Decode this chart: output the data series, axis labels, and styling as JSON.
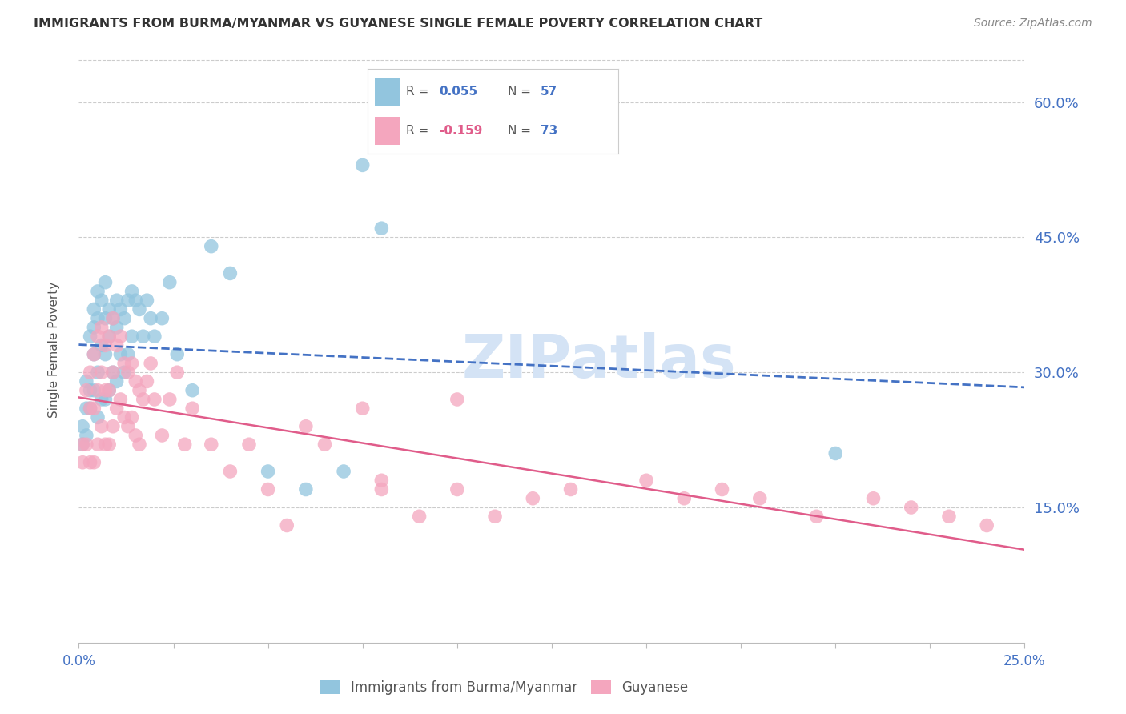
{
  "title": "IMMIGRANTS FROM BURMA/MYANMAR VS GUYANESE SINGLE FEMALE POVERTY CORRELATION CHART",
  "source": "Source: ZipAtlas.com",
  "ylabel": "Single Female Poverty",
  "xmin": 0.0,
  "xmax": 0.25,
  "ymin": 0.0,
  "ymax": 0.65,
  "ytick_vals": [
    0.15,
    0.3,
    0.45,
    0.6
  ],
  "ytick_labels": [
    "15.0%",
    "30.0%",
    "45.0%",
    "60.0%"
  ],
  "blue_color": "#92c5de",
  "pink_color": "#f4a6be",
  "trendline_blue_color": "#4472c4",
  "trendline_pink_color": "#e05c8a",
  "watermark_color": "#d4e3f5",
  "blue_scatter_x": [
    0.001,
    0.001,
    0.002,
    0.002,
    0.002,
    0.003,
    0.003,
    0.003,
    0.004,
    0.004,
    0.004,
    0.004,
    0.005,
    0.005,
    0.005,
    0.005,
    0.006,
    0.006,
    0.006,
    0.007,
    0.007,
    0.007,
    0.007,
    0.008,
    0.008,
    0.008,
    0.009,
    0.009,
    0.01,
    0.01,
    0.01,
    0.011,
    0.011,
    0.012,
    0.012,
    0.013,
    0.013,
    0.014,
    0.014,
    0.015,
    0.016,
    0.017,
    0.018,
    0.019,
    0.02,
    0.022,
    0.024,
    0.026,
    0.03,
    0.035,
    0.04,
    0.05,
    0.06,
    0.07,
    0.075,
    0.08,
    0.2
  ],
  "blue_scatter_y": [
    0.24,
    0.22,
    0.29,
    0.26,
    0.23,
    0.34,
    0.28,
    0.26,
    0.37,
    0.35,
    0.32,
    0.28,
    0.39,
    0.36,
    0.3,
    0.25,
    0.38,
    0.33,
    0.27,
    0.4,
    0.36,
    0.32,
    0.27,
    0.37,
    0.34,
    0.28,
    0.36,
    0.3,
    0.38,
    0.35,
    0.29,
    0.37,
    0.32,
    0.36,
    0.3,
    0.38,
    0.32,
    0.39,
    0.34,
    0.38,
    0.37,
    0.34,
    0.38,
    0.36,
    0.34,
    0.36,
    0.4,
    0.32,
    0.28,
    0.44,
    0.41,
    0.19,
    0.17,
    0.19,
    0.53,
    0.46,
    0.21
  ],
  "pink_scatter_x": [
    0.001,
    0.001,
    0.002,
    0.002,
    0.003,
    0.003,
    0.003,
    0.004,
    0.004,
    0.004,
    0.005,
    0.005,
    0.005,
    0.006,
    0.006,
    0.006,
    0.007,
    0.007,
    0.007,
    0.008,
    0.008,
    0.008,
    0.009,
    0.009,
    0.009,
    0.01,
    0.01,
    0.011,
    0.011,
    0.012,
    0.012,
    0.013,
    0.013,
    0.014,
    0.014,
    0.015,
    0.015,
    0.016,
    0.016,
    0.017,
    0.018,
    0.019,
    0.02,
    0.022,
    0.024,
    0.026,
    0.028,
    0.03,
    0.035,
    0.04,
    0.045,
    0.05,
    0.055,
    0.06,
    0.065,
    0.075,
    0.08,
    0.09,
    0.1,
    0.11,
    0.13,
    0.15,
    0.16,
    0.17,
    0.18,
    0.195,
    0.21,
    0.22,
    0.23,
    0.24,
    0.1,
    0.12,
    0.08
  ],
  "pink_scatter_y": [
    0.22,
    0.2,
    0.28,
    0.22,
    0.3,
    0.26,
    0.2,
    0.32,
    0.26,
    0.2,
    0.34,
    0.28,
    0.22,
    0.35,
    0.3,
    0.24,
    0.33,
    0.28,
    0.22,
    0.34,
    0.28,
    0.22,
    0.36,
    0.3,
    0.24,
    0.33,
    0.26,
    0.34,
    0.27,
    0.31,
    0.25,
    0.3,
    0.24,
    0.31,
    0.25,
    0.29,
    0.23,
    0.28,
    0.22,
    0.27,
    0.29,
    0.31,
    0.27,
    0.23,
    0.27,
    0.3,
    0.22,
    0.26,
    0.22,
    0.19,
    0.22,
    0.17,
    0.13,
    0.24,
    0.22,
    0.26,
    0.18,
    0.14,
    0.17,
    0.14,
    0.17,
    0.18,
    0.16,
    0.17,
    0.16,
    0.14,
    0.16,
    0.15,
    0.14,
    0.13,
    0.27,
    0.16,
    0.17
  ]
}
